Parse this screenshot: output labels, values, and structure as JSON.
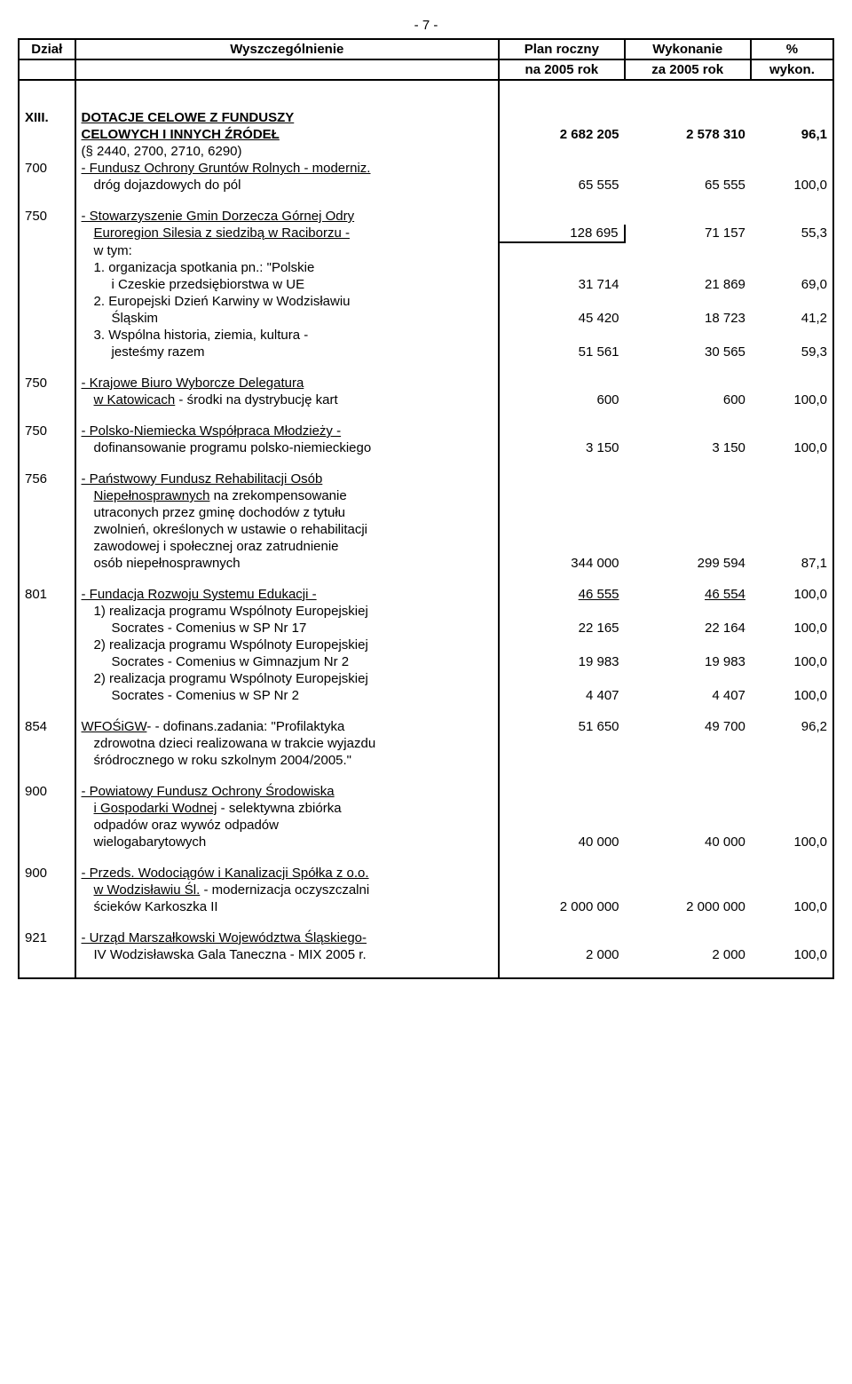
{
  "page_label": "- 7 -",
  "header": {
    "dzial": "Dział",
    "wyszcz": "Wyszczególnienie",
    "plan1": "Plan roczny",
    "plan2": "na 2005 rok",
    "wyk1": "Wykonanie",
    "wyk2": "za 2005 rok",
    "pct1": "%",
    "pct2": "wykon."
  },
  "section": {
    "roman": "XIII.",
    "title": "DOTACJE CELOWE Z FUNDUSZY",
    "title2": "CELOWYCH I INNYCH ŹRÓDEŁ",
    "total_plan": "2 682 205",
    "total_wyk": "2 578 310",
    "total_pct": "96,1",
    "note": "(§ 2440, 2700, 2710, 6290)"
  },
  "rows": [
    {
      "dzial": "700",
      "text": "- Fundusz Ochrony Gruntów Rolnych - moderniz.",
      "under": true
    },
    {
      "text": "dróg dojazdowych do pól",
      "indent": 1,
      "plan": "65 555",
      "wyk": "65 555",
      "pct": "100,0"
    },
    {
      "spacer": true
    },
    {
      "dzial": "750",
      "text": "- Stowarzyszenie Gmin Dorzecza Górnej Odry",
      "under": true,
      "plan_box_start": true
    },
    {
      "text": "Euroregion Silesia z siedzibą w Raciborzu -",
      "under": true,
      "indent": 1,
      "plan": "128 695",
      "wyk": "71 157",
      "pct": "55,3",
      "plan_boxed": true,
      "plan_box_bottom": true
    },
    {
      "text": "w tym:",
      "indent": 1
    },
    {
      "text": "1. organizacja spotkania pn.: \"Polskie",
      "indent": 1
    },
    {
      "text": "i Czeskie przedsiębiorstwa w UE",
      "indent": 2,
      "plan": "31 714",
      "wyk": "21 869",
      "pct": "69,0"
    },
    {
      "text": "2. Europejski Dzień Karwiny w Wodzisławiu",
      "indent": 1
    },
    {
      "text": "Śląskim",
      "indent": 2,
      "plan": "45 420",
      "wyk": "18 723",
      "pct": "41,2"
    },
    {
      "text": "3. Wspólna historia, ziemia, kultura -",
      "indent": 1
    },
    {
      "text": "jesteśmy razem",
      "indent": 2,
      "plan": "51 561",
      "wyk": "30 565",
      "pct": "59,3"
    },
    {
      "spacer": true
    },
    {
      "dzial": "750",
      "text": "- Krajowe Biuro Wyborcze Delegatura ",
      "under": true
    },
    {
      "text": "w Katowicach - środki na dystrybucję kart",
      "under_part": "w Katowicach",
      "indent": 1,
      "plan": "600",
      "wyk": "600",
      "pct": "100,0"
    },
    {
      "spacer": true
    },
    {
      "dzial": "750",
      "text": "- Polsko-Niemiecka Współpraca Młodzieży -",
      "under": true
    },
    {
      "text": "dofinansowanie programu polsko-niemieckiego",
      "indent": 1,
      "plan": "3 150",
      "wyk": "3 150",
      "pct": "100,0"
    },
    {
      "spacer": true
    },
    {
      "dzial": "756",
      "text": "- Państwowy Fundusz Rehabilitacji Osób",
      "under": true
    },
    {
      "text": "Niepełnosprawnych na zrekompensowanie",
      "under_part": "Niepełnosprawnych",
      "indent": 1
    },
    {
      "text": "utraconych przez gminę dochodów z tytułu",
      "indent": 1
    },
    {
      "text": "zwolnień, określonych w ustawie o rehabilitacji",
      "indent": 1
    },
    {
      "text": "zawodowej i społecznej oraz zatrudnienie",
      "indent": 1
    },
    {
      "text": "osób niepełnosprawnych",
      "indent": 1,
      "plan": "344 000",
      "wyk": "299 594",
      "pct": "87,1"
    },
    {
      "spacer": true
    },
    {
      "dzial": "801",
      "text": "- Fundacja Rozwoju Systemu Edukacji -",
      "under": true,
      "plan": "46 555",
      "wyk": "46 554",
      "pct": "100,0",
      "plan_under": true,
      "wyk_under": true
    },
    {
      "text": "1) realizacja programu Wspólnoty Europejskiej",
      "indent": 1
    },
    {
      "text": "Socrates - Comenius w SP Nr 17",
      "indent": 2,
      "plan": "22 165",
      "wyk": "22 164",
      "pct": "100,0"
    },
    {
      "text": "2) realizacja programu Wspólnoty Europejskiej",
      "indent": 1
    },
    {
      "text": "Socrates - Comenius w Gimnazjum Nr 2",
      "indent": 2,
      "plan": "19 983",
      "wyk": "19 983",
      "pct": "100,0"
    },
    {
      "text": "2) realizacja programu Wspólnoty Europejskiej",
      "indent": 1
    },
    {
      "text": "Socrates - Comenius w SP Nr 2",
      "indent": 2,
      "plan": "4 407",
      "wyk": "4 407",
      "pct": "100,0"
    },
    {
      "spacer": true
    },
    {
      "dzial": "854",
      "text": "- WFOŚiGW - dofinans.zadania: \"Profilaktyka",
      "under_part": "WFOŚiGW",
      "plan": "51 650",
      "wyk": "49 700",
      "pct": "96,2"
    },
    {
      "text": "zdrowotna dzieci realizowana w trakcie wyjazdu",
      "indent": 1
    },
    {
      "text": "śródrocznego w roku szkolnym 2004/2005.\"",
      "indent": 1
    },
    {
      "spacer": true
    },
    {
      "dzial": "900",
      "text": "- Powiatowy Fundusz Ochrony Środowiska",
      "under": true
    },
    {
      "text": "i Gospodarki Wodnej - selektywna zbiórka",
      "under_part": "i Gospodarki Wodnej",
      "indent": 1
    },
    {
      "text": "odpadów oraz wywóz odpadów",
      "indent": 1
    },
    {
      "text": "wielogabarytowych",
      "indent": 1,
      "plan": "40 000",
      "wyk": "40 000",
      "pct": "100,0"
    },
    {
      "spacer": true
    },
    {
      "dzial": "900",
      "text": "- Przeds. Wodociągów i Kanalizacji Spółka z o.o.",
      "under": true
    },
    {
      "text": "w Wodzisławiu Śl. - modernizacja oczyszczalni",
      "under_part": "w Wodzisławiu Śl.",
      "indent": 1
    },
    {
      "text": "ścieków Karkoszka II",
      "indent": 1,
      "plan": "2 000 000",
      "wyk": "2 000 000",
      "pct": "100,0"
    },
    {
      "spacer": true
    },
    {
      "dzial": "921",
      "text": "- Urząd Marszałkowski Województwa Śląskiego-",
      "under": true
    },
    {
      "text": "IV Wodzisławska Gala Taneczna - MIX 2005 r.",
      "indent": 1,
      "plan": "2 000",
      "wyk": "2 000",
      "pct": "100,0"
    },
    {
      "spacer": true
    }
  ]
}
